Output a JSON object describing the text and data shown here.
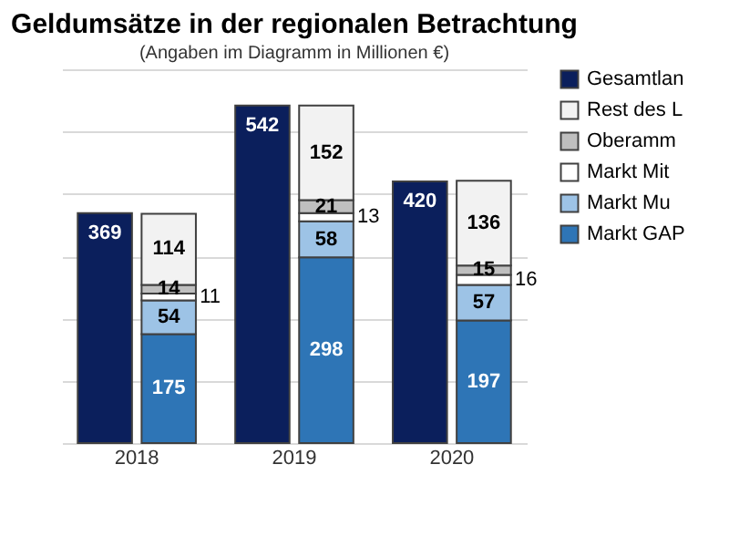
{
  "chart_data": {
    "type": "bar",
    "title": "Geldumsätze in der regionalen Betrachtung",
    "subtitle": "(Angaben im Diagramm in Millionen €)",
    "categories": [
      null,
      null,
      null,
      null,
      null,
      null
    ],
    "annotations": [
      "2018",
      "2019",
      "2020"
    ],
    "series": [
      {
        "name": "Gesamtlan",
        "color": "#0b1f5c",
        "values": [
          369,
          null,
          542,
          null,
          420,
          null
        ]
      },
      {
        "name": "Markt GAP",
        "color": "#2e75b6",
        "values": [
          null,
          175,
          null,
          298,
          null,
          197
        ]
      },
      {
        "name": "Markt Mu",
        "color": "#9dc3e6",
        "values": [
          null,
          54,
          null,
          58,
          null,
          57
        ]
      },
      {
        "name": "Markt Mit",
        "color": "#ffffff",
        "values": [
          null,
          11,
          null,
          13,
          null,
          16
        ]
      },
      {
        "name": "Oberamm",
        "color": "#bfbfbf",
        "values": [
          null,
          14,
          null,
          21,
          null,
          15
        ]
      },
      {
        "name": "Rest des L",
        "color": "#f2f2f2",
        "values": [
          null,
          114,
          null,
          152,
          null,
          136
        ]
      }
    ],
    "stacked": true,
    "data_labels": true,
    "ylim": [
      0,
      600
    ],
    "tick_labels": "x",
    "grid": "y",
    "legend": "right"
  }
}
